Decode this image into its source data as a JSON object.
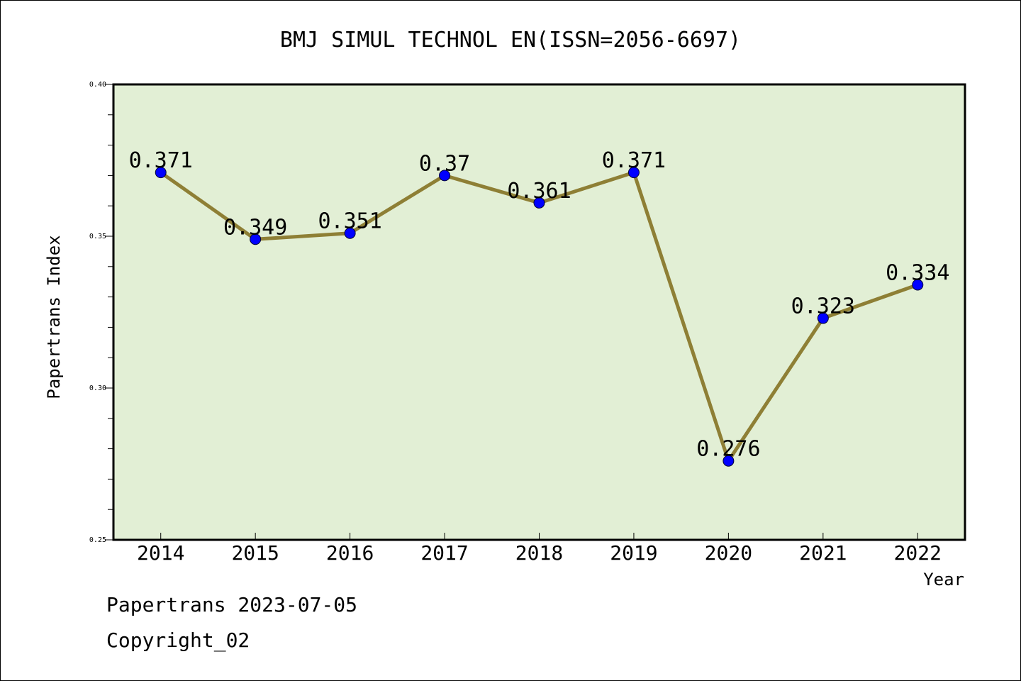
{
  "chart_data": {
    "type": "line",
    "title": "BMJ SIMUL TECHNOL EN(ISSN=2056-6697)",
    "xlabel": "Year",
    "ylabel": "Papertrans Index",
    "categories": [
      "2014",
      "2015",
      "2016",
      "2017",
      "2018",
      "2019",
      "2020",
      "2021",
      "2022"
    ],
    "values": [
      0.371,
      0.349,
      0.351,
      0.37,
      0.361,
      0.371,
      0.276,
      0.323,
      0.334
    ],
    "data_labels": [
      "0.371",
      "0.349",
      "0.351",
      "0.37",
      "0.361",
      "0.371",
      "0.276",
      "0.323",
      "0.334"
    ],
    "ylim": [
      0.25,
      0.4
    ],
    "yticks": [
      0.25,
      0.3,
      0.35,
      0.4
    ],
    "ytick_labels": [
      "0.25",
      "0.30",
      "0.35",
      "0.40"
    ],
    "y_minor_step": 0.01,
    "grid": false,
    "colors": {
      "plot_background": "#e2efd5",
      "line": "#8e7f35",
      "marker": "#0000ff",
      "axis": "#000000"
    }
  },
  "footer": {
    "source": "Papertrans 2023-07-05",
    "copyright": "Copyright_02"
  }
}
